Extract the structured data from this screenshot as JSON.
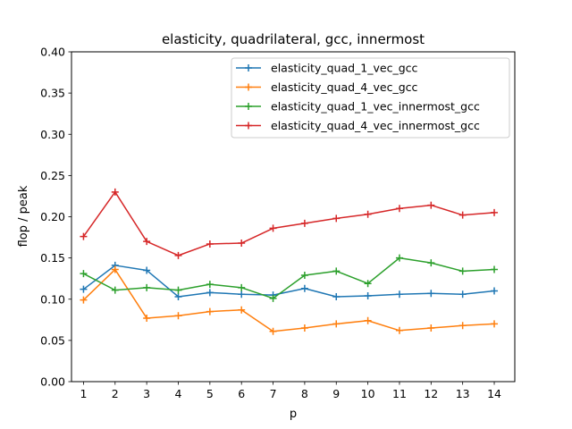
{
  "chart_data": {
    "type": "line",
    "title": "elasticity, quadrilateral, gcc, innermost",
    "xlabel": "p",
    "ylabel": "flop / peak",
    "x": [
      1,
      2,
      3,
      4,
      5,
      6,
      7,
      8,
      9,
      10,
      11,
      12,
      13,
      14
    ],
    "xlim": [
      0.62,
      14.65
    ],
    "ylim": [
      0.0,
      0.4
    ],
    "yticks": [
      "0.00",
      "0.05",
      "0.10",
      "0.15",
      "0.20",
      "0.25",
      "0.30",
      "0.35",
      "0.40"
    ],
    "xticks": [
      "1",
      "2",
      "3",
      "4",
      "5",
      "6",
      "7",
      "8",
      "9",
      "10",
      "11",
      "12",
      "13",
      "14"
    ],
    "grid": false,
    "legend_position": "upper-right",
    "marker": "+",
    "series": [
      {
        "name": "elasticity_quad_1_vec_gcc",
        "color": "#1f77b4",
        "values": [
          0.112,
          0.141,
          0.135,
          0.103,
          0.108,
          0.106,
          0.105,
          0.113,
          0.103,
          0.104,
          0.106,
          0.107,
          0.106,
          0.11
        ]
      },
      {
        "name": "elasticity_quad_4_vec_gcc",
        "color": "#ff7f0e",
        "values": [
          0.099,
          0.136,
          0.077,
          0.08,
          0.085,
          0.087,
          0.061,
          0.065,
          0.07,
          0.074,
          0.062,
          0.065,
          0.068,
          0.07
        ]
      },
      {
        "name": "elasticity_quad_1_vec_innermost_gcc",
        "color": "#2ca02c",
        "values": [
          0.131,
          0.111,
          0.114,
          0.111,
          0.118,
          0.114,
          0.101,
          0.129,
          0.134,
          0.119,
          0.15,
          0.144,
          0.134,
          0.136
        ]
      },
      {
        "name": "elasticity_quad_4_vec_innermost_gcc",
        "color": "#d62728",
        "values": [
          0.176,
          0.23,
          0.17,
          0.153,
          0.167,
          0.168,
          0.186,
          0.192,
          0.198,
          0.203,
          0.21,
          0.214,
          0.202,
          0.205
        ]
      }
    ]
  }
}
